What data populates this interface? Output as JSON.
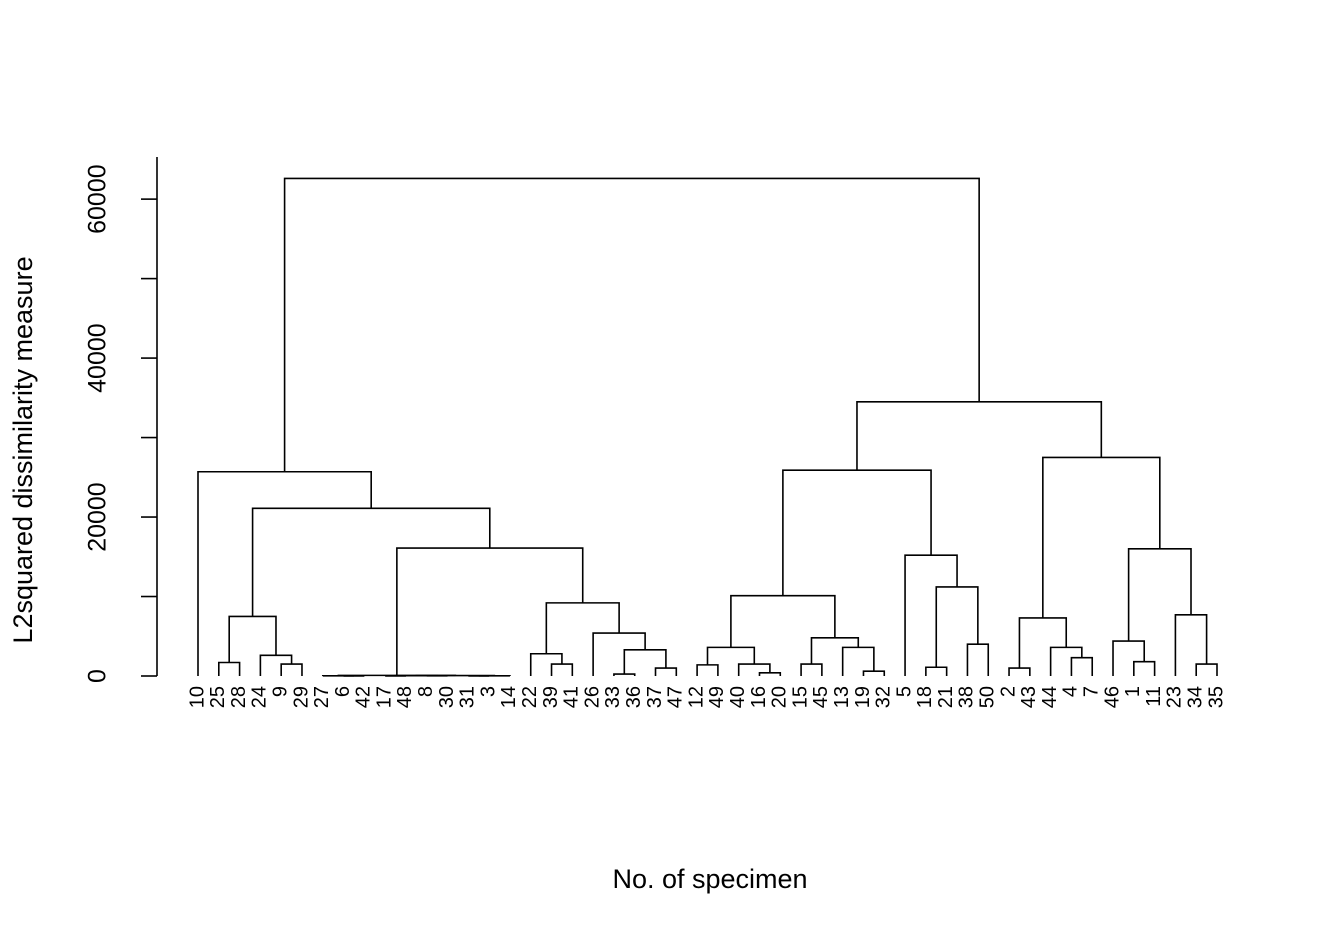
{
  "chart_data": {
    "type": "dendrogram",
    "xlabel": "No. of specimen",
    "ylabel": "L2squared dissimilarity measure",
    "categories": [
      "10",
      "25",
      "28",
      "24",
      "9",
      "29",
      "27",
      "6",
      "42",
      "17",
      "48",
      "8",
      "30",
      "31",
      "3",
      "14",
      "22",
      "39",
      "41",
      "26",
      "33",
      "36",
      "37",
      "47",
      "12",
      "49",
      "40",
      "16",
      "20",
      "15",
      "45",
      "13",
      "19",
      "32",
      "5",
      "18",
      "21",
      "38",
      "50",
      "2",
      "43",
      "44",
      "4",
      "7",
      "46",
      "1",
      "11",
      "23",
      "34",
      "35"
    ],
    "merge": [
      [
        -33,
        -36
      ],
      [
        -16,
        -20
      ],
      [
        -19,
        -32
      ],
      [
        -37,
        -47
      ],
      [
        -2,
        -43
      ],
      [
        -18,
        -21
      ],
      [
        -12,
        -49
      ],
      [
        -9,
        -29
      ],
      [
        -39,
        -41
      ],
      [
        -40,
        2
      ],
      [
        -15,
        -45
      ],
      [
        -34,
        -35
      ],
      [
        -25,
        -28
      ],
      [
        -1,
        -11
      ],
      [
        -4,
        -7
      ],
      [
        -24,
        8
      ],
      [
        -22,
        9
      ],
      [
        1,
        4
      ],
      [
        7,
        10
      ],
      [
        -13,
        3
      ],
      [
        -44,
        15
      ],
      [
        -38,
        -50
      ],
      [
        -46,
        14
      ],
      [
        11,
        20
      ],
      [
        -26,
        18
      ],
      [
        5,
        21
      ],
      [
        13,
        16
      ],
      [
        -23,
        12
      ],
      [
        17,
        25
      ],
      [
        19,
        24
      ],
      [
        6,
        22
      ],
      [
        -5,
        31
      ],
      [
        23,
        28
      ],
      [
        -6,
        -42
      ],
      [
        -17,
        -48
      ],
      [
        -31,
        -3
      ],
      [
        -8,
        -30
      ],
      [
        -27,
        34
      ],
      [
        36,
        -14
      ],
      [
        35,
        37
      ],
      [
        40,
        39
      ],
      [
        38,
        41
      ],
      [
        42,
        29
      ],
      [
        27,
        43
      ],
      [
        -10,
        44
      ],
      [
        30,
        32
      ],
      [
        26,
        33
      ],
      [
        46,
        47
      ],
      [
        45,
        48
      ]
    ],
    "height": [
      250,
      400,
      600,
      1000,
      1000,
      1100,
      1400,
      1500,
      1500,
      1500,
      1500,
      1500,
      1700,
      1800,
      2300,
      2600,
      2800,
      3300,
      3600,
      3600,
      3600,
      4000,
      4400,
      4800,
      5400,
      7300,
      7500,
      7700,
      9200,
      10100,
      11200,
      15200,
      16000,
      10,
      10,
      10,
      15,
      20,
      20,
      40,
      60,
      80,
      16100,
      21100,
      25700,
      25900,
      27500,
      34500,
      62600
    ],
    "ylim": [
      0,
      65300
    ],
    "yticks": [
      0,
      {
        "value": 10000,
        "label": null
      },
      20000,
      {
        "value": 30000,
        "label": null
      },
      40000,
      {
        "value": 50000,
        "label": null
      },
      60000
    ],
    "color": "#000000"
  }
}
